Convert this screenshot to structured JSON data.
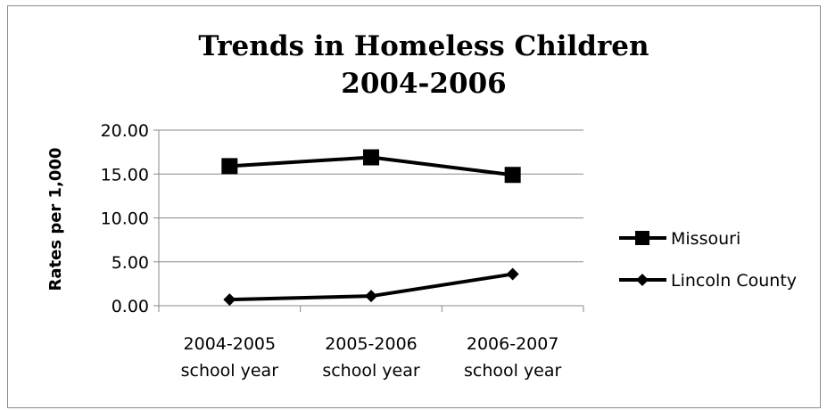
{
  "chart_data": {
    "type": "line",
    "title_lines": [
      "Trends in Homeless Children",
      "2004-2006"
    ],
    "ylabel": "Rates per 1,000",
    "xlabel": "",
    "categories": [
      [
        "2004-2005",
        "school year"
      ],
      [
        "2005-2006",
        "school year"
      ],
      [
        "2006-2007",
        "school year"
      ]
    ],
    "y_ticks": [
      "0.00",
      "5.00",
      "10.00",
      "15.00",
      "20.00"
    ],
    "ylim": [
      0,
      20
    ],
    "grid": "horizontal",
    "legend_position": "right",
    "series": [
      {
        "name": "Missouri",
        "values": [
          15.9,
          16.9,
          14.9
        ],
        "marker": "square",
        "color": "#000000"
      },
      {
        "name": "Lincoln County",
        "values": [
          0.7,
          1.1,
          3.6
        ],
        "marker": "diamond",
        "color": "#000000"
      }
    ]
  }
}
